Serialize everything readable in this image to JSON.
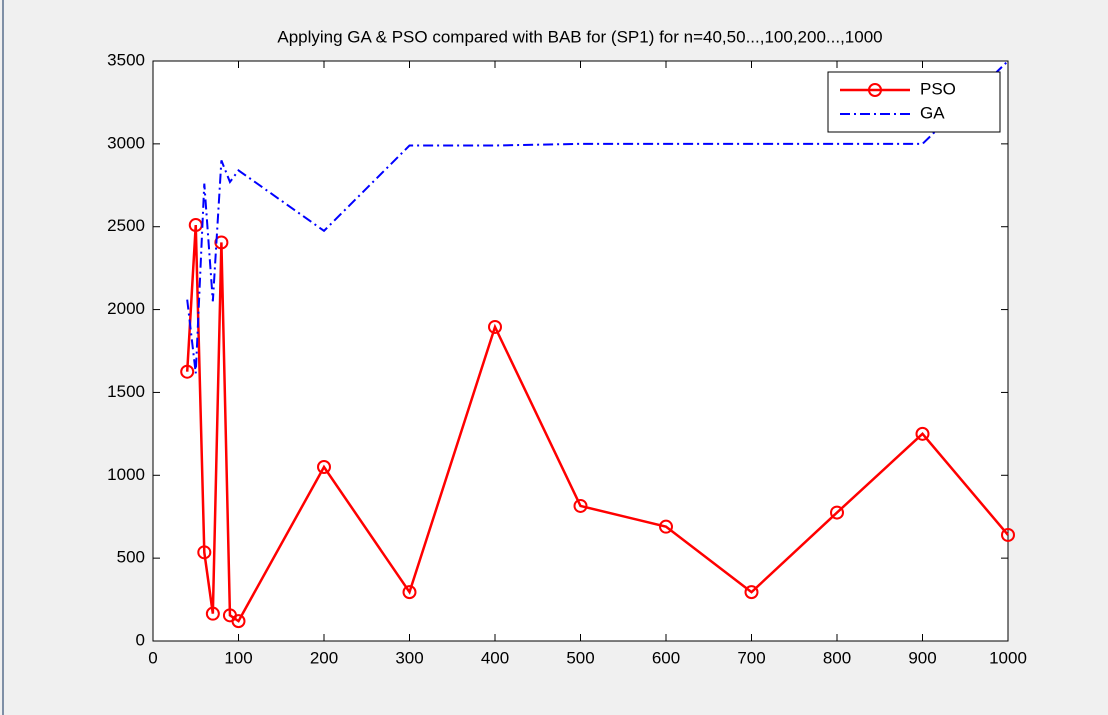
{
  "chart_data": {
    "type": "line",
    "title": "Applying GA & PSO compared with BAB for (SP1) for n=40,50...,100,200...,1000",
    "x": [
      40,
      50,
      60,
      70,
      80,
      90,
      100,
      200,
      300,
      400,
      500,
      600,
      700,
      800,
      900,
      1000
    ],
    "series": [
      {
        "name": "PSO",
        "color": "#ff0000",
        "marker": "o",
        "dash": "solid",
        "values": [
          1625,
          2510,
          535,
          165,
          2405,
          155,
          120,
          1050,
          295,
          1895,
          815,
          690,
          295,
          775,
          1250,
          640
        ]
      },
      {
        "name": "GA",
        "color": "#0000ff",
        "marker": "none",
        "dash": "dashdot",
        "values": [
          2060,
          1615,
          2760,
          2050,
          2900,
          2770,
          2840,
          2475,
          2990,
          2990,
          3000,
          3000,
          3000,
          3000,
          3000,
          3500
        ]
      }
    ],
    "xlim": [
      0,
      1000
    ],
    "xticks": [
      0,
      100,
      200,
      300,
      400,
      500,
      600,
      700,
      800,
      900,
      1000
    ],
    "ylim": [
      0,
      3500
    ],
    "yticks": [
      0,
      500,
      1000,
      1500,
      2000,
      2500,
      3000,
      3500
    ],
    "grid": false,
    "legend": "northeast"
  }
}
